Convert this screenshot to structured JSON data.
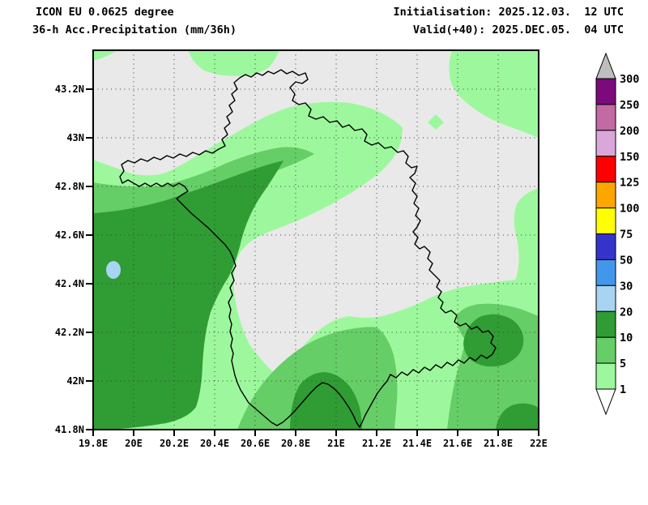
{
  "header": {
    "model": "ICON EU 0.0625 degree",
    "parameter": "36-h Acc.Precipitation (mm/36h)",
    "initialisation": "Initialisation: 2025.12.03.  12 UTC",
    "valid": "Valid(+40): 2025.DEC.05.  04 UTC"
  },
  "axes": {
    "lat_ticks": [
      "43.2N",
      "43N",
      "42.8N",
      "42.6N",
      "42.4N",
      "42.2N",
      "42N",
      "41.8N"
    ],
    "lon_ticks": [
      "19.8E",
      "20E",
      "20.2E",
      "20.4E",
      "20.6E",
      "20.8E",
      "21E",
      "21.2E",
      "21.4E",
      "21.6E",
      "21.8E",
      "22E"
    ]
  },
  "colorbar": {
    "unit": "mm/36h",
    "tick_labels": [
      "300",
      "250",
      "200",
      "150",
      "125",
      "100",
      "75",
      "50",
      "30",
      "20",
      "10",
      "5",
      "1"
    ],
    "segment_colors_top_to_bottom": [
      "#7D0A7D",
      "#C369A3",
      "#D9A7D9",
      "#FF0000",
      "#FFA500",
      "#FFFF00",
      "#3434CC",
      "#4397EA",
      "#A8D4F2",
      "#2F9D33",
      "#66CE66",
      "#9DF89D"
    ],
    "above_max_color": "#BEBEBE",
    "below_min_color": "#FFFFFF"
  },
  "palette": {
    "below_1_map": "#E9E9E9",
    "band_1_5": "#9DF89D",
    "band_5_10": "#66CE66",
    "band_10_20": "#2F9D33",
    "band_20_30": "#A8D4F2",
    "border_color": "#000000"
  }
}
